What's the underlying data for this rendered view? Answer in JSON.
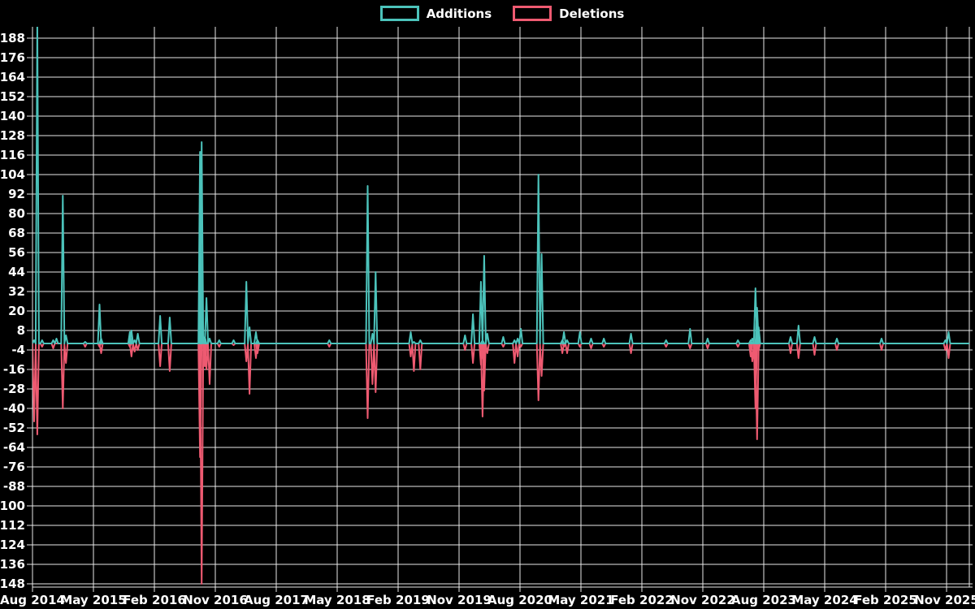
{
  "chart_data": {
    "type": "line",
    "title": "",
    "xlabel": "",
    "ylabel": "",
    "legend_position": "top-center",
    "grid": true,
    "background_color": "#000000",
    "colors": {
      "additions": "#4cc3bb",
      "deletions": "#ee5a71",
      "grid": "#e9e9e9",
      "text": "#ffffff"
    },
    "series": [
      {
        "name": "Additions",
        "color": "#4cc3bb"
      },
      {
        "name": "Deletions",
        "color": "#ee5a71"
      }
    ],
    "x_tick_labels": [
      "Aug 2014",
      "May 2015",
      "Feb 2016",
      "Nov 2016",
      "Aug 2017",
      "May 2018",
      "Feb 2019",
      "Nov 2019",
      "Aug 2020",
      "May 2021",
      "Feb 2022",
      "Nov 2022",
      "Aug 2023",
      "May 2024",
      "Feb 2025",
      "Nov 2025"
    ],
    "x_tick_interval_months": 9,
    "x_axis_weeks_total": 587,
    "y_ticks": [
      188,
      176,
      164,
      152,
      140,
      128,
      116,
      104,
      92,
      80,
      68,
      56,
      44,
      32,
      20,
      8,
      -4,
      -16,
      -28,
      -40,
      -52,
      -64,
      -76,
      -88,
      -100,
      -112,
      -124,
      -136,
      -148
    ],
    "y_visible_range": [
      -150,
      195
    ],
    "baseline_value": 0,
    "points_format": [
      "week_index",
      "additions",
      "deletions"
    ],
    "points": [
      [
        1,
        2,
        -48
      ],
      [
        3,
        200,
        -56
      ],
      [
        6,
        2,
        -2
      ],
      [
        13,
        2,
        -3
      ],
      [
        15,
        3,
        0
      ],
      [
        19,
        91,
        -40
      ],
      [
        21,
        5,
        -12
      ],
      [
        33,
        1,
        -2
      ],
      [
        42,
        24,
        -2
      ],
      [
        43,
        3,
        -6
      ],
      [
        61,
        7,
        -2
      ],
      [
        62,
        8,
        -8
      ],
      [
        64,
        2,
        -5
      ],
      [
        66,
        6,
        -4
      ],
      [
        80,
        17,
        -14
      ],
      [
        86,
        16,
        -17
      ],
      [
        105,
        118,
        -70
      ],
      [
        106,
        124,
        -148
      ],
      [
        108,
        4,
        -14
      ],
      [
        109,
        28,
        -16
      ],
      [
        111,
        3,
        -25
      ],
      [
        117,
        2,
        -2
      ],
      [
        126,
        2,
        -1
      ],
      [
        134,
        38,
        -11
      ],
      [
        136,
        10,
        -31
      ],
      [
        140,
        7,
        -9
      ],
      [
        141,
        2,
        -6
      ],
      [
        186,
        2,
        -2
      ],
      [
        210,
        97,
        -46
      ],
      [
        213,
        6,
        -25
      ],
      [
        215,
        44,
        -30
      ],
      [
        237,
        7,
        -8
      ],
      [
        239,
        1,
        -17
      ],
      [
        243,
        2,
        -16
      ],
      [
        271,
        5,
        -4
      ],
      [
        276,
        18,
        -12
      ],
      [
        281,
        38,
        -13
      ],
      [
        282,
        2,
        -45
      ],
      [
        283,
        54,
        -29
      ],
      [
        285,
        6,
        -6
      ],
      [
        295,
        4,
        -2
      ],
      [
        302,
        2,
        -12
      ],
      [
        304,
        3,
        -8
      ],
      [
        306,
        9,
        -2
      ],
      [
        317,
        104,
        -35
      ],
      [
        319,
        55,
        -20
      ],
      [
        332,
        2,
        -6
      ],
      [
        333,
        7,
        -2
      ],
      [
        335,
        2,
        -6
      ],
      [
        343,
        7,
        -2
      ],
      [
        350,
        3,
        -3
      ],
      [
        358,
        3,
        -2
      ],
      [
        375,
        6,
        -6
      ],
      [
        397,
        2,
        -2
      ],
      [
        412,
        9,
        -3
      ],
      [
        423,
        3,
        -3
      ],
      [
        442,
        2,
        -2
      ],
      [
        450,
        2,
        -8
      ],
      [
        451,
        3,
        -11
      ],
      [
        453,
        34,
        -40
      ],
      [
        454,
        22,
        -59
      ],
      [
        455,
        10,
        -4
      ],
      [
        475,
        4,
        -6
      ],
      [
        480,
        11,
        -9
      ],
      [
        490,
        4,
        -7
      ],
      [
        504,
        3,
        -4
      ],
      [
        532,
        3,
        -4
      ],
      [
        572,
        2,
        -4
      ],
      [
        574,
        7,
        -9
      ]
    ]
  }
}
